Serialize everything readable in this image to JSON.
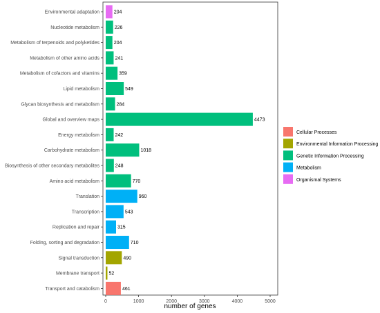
{
  "chart_data": {
    "type": "bar",
    "orientation": "horizontal",
    "title": "",
    "xlabel": "number of genes",
    "ylabel": "",
    "xlim": [
      0,
      5000
    ],
    "xticks": [
      0,
      1000,
      2000,
      3000,
      4000,
      5000
    ],
    "grid": false,
    "legend_position": "right",
    "categories": [
      "Environmental adaptation",
      "Nucleotide metabolism",
      "Metabolism of terpenoids and polyketides",
      "Metabolism of other amino acids",
      "Metabolism of cofactors and vitamins",
      "Lipid metabolism",
      "Glycan biosynthesis and metabolism",
      "Global and overview maps",
      "Energy metabolism",
      "Carbohydrate metabolism",
      "Biosynthesis of other secondary metabolites",
      "Amino acid metabolism",
      "Translation",
      "Transcription",
      "Replication and repair",
      "Folding, sorting and degradation",
      "Signal transduction",
      "Membrane transport",
      "Transport and catabolism"
    ],
    "values": [
      204,
      226,
      204,
      241,
      359,
      549,
      284,
      4473,
      242,
      1018,
      248,
      770,
      960,
      543,
      315,
      710,
      490,
      52,
      461
    ],
    "value_labels": [
      "204",
      "226",
      "204",
      "241",
      "359",
      "549",
      "284",
      "4473",
      "242",
      "1018",
      "248",
      "770",
      "960",
      "543",
      "315",
      "710",
      "490",
      "52",
      "461"
    ],
    "groups": [
      4,
      2,
      2,
      2,
      2,
      2,
      2,
      2,
      2,
      2,
      2,
      2,
      3,
      3,
      3,
      3,
      1,
      1,
      0
    ],
    "legend": [
      {
        "name": "Cellular Processes",
        "color": "#F8766D"
      },
      {
        "name": "Environmental Information Processing",
        "color": "#A3A500"
      },
      {
        "name": "Genetic Information Processing",
        "color": "#00BF7D"
      },
      {
        "name": "Metabolism",
        "color": "#00B0F6"
      },
      {
        "name": "Organismal Systems",
        "color": "#E76BF3"
      }
    ]
  }
}
